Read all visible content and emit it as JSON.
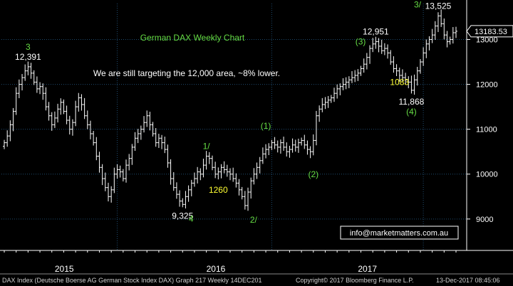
{
  "chart_data": {
    "type": "ohlc-bar",
    "title": "German DAX Weekly Chart",
    "subtitle": "We are still targeting the 12,000 area, ~8% lower.",
    "x_labels": [
      "2015",
      "2016",
      "2017"
    ],
    "y_ticks": [
      "9000",
      "10000",
      "11000",
      "12000",
      "13000"
    ],
    "ylim": [
      8300,
      13800
    ],
    "last_price": "13183.53",
    "contact": "info@marketmatters.com.au",
    "series": [
      {
        "weekly_close": [
          10700,
          10850,
          11100,
          11400,
          11800,
          12000,
          12150,
          12300,
          12391,
          12250,
          12050,
          11900,
          11950,
          11800,
          11500,
          11300,
          11100,
          11250,
          11450,
          11600,
          11400,
          11200,
          11000,
          11150,
          11500,
          11700,
          11550,
          11300,
          11100,
          10900,
          10700,
          10400,
          10150,
          9900,
          9700,
          9500,
          9650,
          10000,
          10100,
          10050,
          9900,
          10200,
          10350,
          10600,
          10800,
          10900,
          11000,
          11150,
          11300,
          11100,
          10900,
          10700,
          10800,
          10700,
          10550,
          10250,
          9900,
          9700,
          9550,
          9400,
          9325,
          9500,
          9650,
          9800,
          9900,
          10050,
          10000,
          10200,
          10400,
          10350,
          10150,
          10000,
          10050,
          10150,
          10100,
          10050,
          10000,
          9900,
          9800,
          9650,
          9500,
          9300,
          9600,
          9850,
          10000,
          10150,
          10300,
          10450,
          10550,
          10600,
          10700,
          10650,
          10600,
          10700,
          10600,
          10500,
          10550,
          10650,
          10600,
          10700,
          10750,
          10650,
          10550,
          10500,
          10750,
          11300,
          11450,
          11550,
          11600,
          11650,
          11700,
          11800,
          11900,
          11950,
          12000,
          12050,
          12100,
          12150,
          12200,
          12250,
          12350,
          12450,
          12600,
          12800,
          12900,
          12951,
          12850,
          12750,
          12800,
          12700,
          12500,
          12350,
          12300,
          12200,
          12150,
          12100,
          12050,
          11868,
          12100,
          12300,
          12500,
          12700,
          12900,
          13000,
          13100,
          13300,
          13525,
          13350,
          13100,
          12950,
          13000,
          13150,
          13183.53
        ],
        "weekly_range": 180
      }
    ],
    "price_labels": [
      {
        "text": "12,391",
        "x": 8,
        "y": 12391,
        "pos": "above",
        "color": "#ffffff"
      },
      {
        "text": "9,325",
        "x": 60,
        "y": 9325,
        "pos": "below",
        "color": "#ffffff"
      },
      {
        "text": "12,951",
        "x": 125,
        "y": 12951,
        "pos": "above",
        "color": "#ffffff"
      },
      {
        "text": "11,868",
        "x": 137,
        "y": 11868,
        "pos": "below",
        "color": "#ffffff"
      },
      {
        "text": "13,525",
        "x": 146,
        "y": 13525,
        "pos": "above",
        "color": "#ffffff"
      }
    ],
    "wave_labels": [
      {
        "text": "3",
        "x": 8,
        "y": 12391,
        "pos": "above2",
        "color": "#66dd44"
      },
      {
        "text": "4",
        "x": 60,
        "y": 9325,
        "pos": "below-right",
        "color": "#66dd44"
      },
      {
        "text": "1/",
        "x": 68,
        "y": 10400,
        "pos": "above",
        "color": "#66dd44"
      },
      {
        "text": "2/",
        "x": 81,
        "y": 9300,
        "pos": "below-right",
        "color": "#66dd44"
      },
      {
        "text": "(1)",
        "x": 88,
        "y": 10850,
        "pos": "above",
        "color": "#66dd44"
      },
      {
        "text": "(2)",
        "x": 104,
        "y": 10250,
        "pos": "below",
        "color": "#66dd44"
      },
      {
        "text": "(3)",
        "x": 125,
        "y": 12951,
        "pos": "left",
        "color": "#66dd44"
      },
      {
        "text": "(4)",
        "x": 137,
        "y": 11868,
        "pos": "below2",
        "color": "#66dd44"
      },
      {
        "text": "3/",
        "x": 146,
        "y": 13525,
        "pos": "left-up",
        "color": "#66dd44"
      }
    ],
    "yellow_labels": [
      {
        "text": "1260",
        "x": 72,
        "y": 9650,
        "color": "#ffff33"
      },
      {
        "text": "1083",
        "x": 133,
        "y": 12050,
        "color": "#ffff33"
      }
    ]
  },
  "footer": {
    "left": "DAX Index (Deutsche Boerse AG German Stock Index DAX) Graph 217  Weekly 14DEC201",
    "mid": "Copyright© 2017 Bloomberg Finance L.P.",
    "right": "13-Dec-2017 08:45:06"
  },
  "colors": {
    "background": "#000000",
    "bars": "#ffffff",
    "grid": "#1e4a6e",
    "axis_text": "#ffffff",
    "title": "#66dd44"
  }
}
